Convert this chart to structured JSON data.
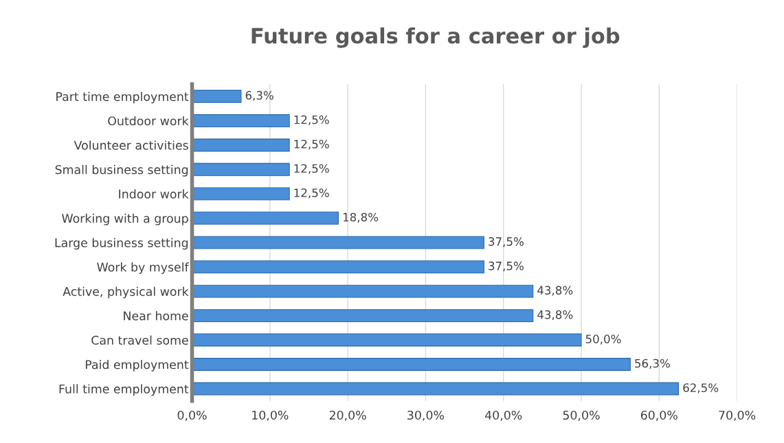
{
  "chart_data": {
    "type": "bar",
    "orientation": "horizontal",
    "title": "Future goals for a career or job",
    "categories": [
      "Part time employment",
      "Outdoor work",
      "Volunteer activities",
      "Small business setting",
      "Indoor work",
      "Working with a group",
      "Large business setting",
      "Work by myself",
      "Active, physical work",
      "Near home",
      "Can travel some",
      "Paid employment",
      "Full time employment"
    ],
    "values": [
      6.3,
      12.5,
      12.5,
      12.5,
      12.5,
      18.8,
      37.5,
      37.5,
      43.8,
      43.8,
      50.0,
      56.3,
      62.5
    ],
    "value_labels": [
      "6,3%",
      "12,5%",
      "12,5%",
      "12,5%",
      "12,5%",
      "18,8%",
      "37,5%",
      "37,5%",
      "43,8%",
      "43,8%",
      "50,0%",
      "56,3%",
      "62,5%"
    ],
    "color": "#4a8fd8",
    "xlim": [
      0,
      70
    ],
    "xticks": [
      {
        "value": 0,
        "label": "0,0%"
      },
      {
        "value": 10,
        "label": "10,0%"
      },
      {
        "value": 20,
        "label": "20,0%"
      },
      {
        "value": 30,
        "label": "30,0%"
      },
      {
        "value": 40,
        "label": "40,0%"
      },
      {
        "value": 50,
        "label": "50,0%"
      },
      {
        "value": 60,
        "label": "60,0%"
      },
      {
        "value": 70,
        "label": "70,0%"
      }
    ],
    "grid": "x",
    "legend": false
  }
}
